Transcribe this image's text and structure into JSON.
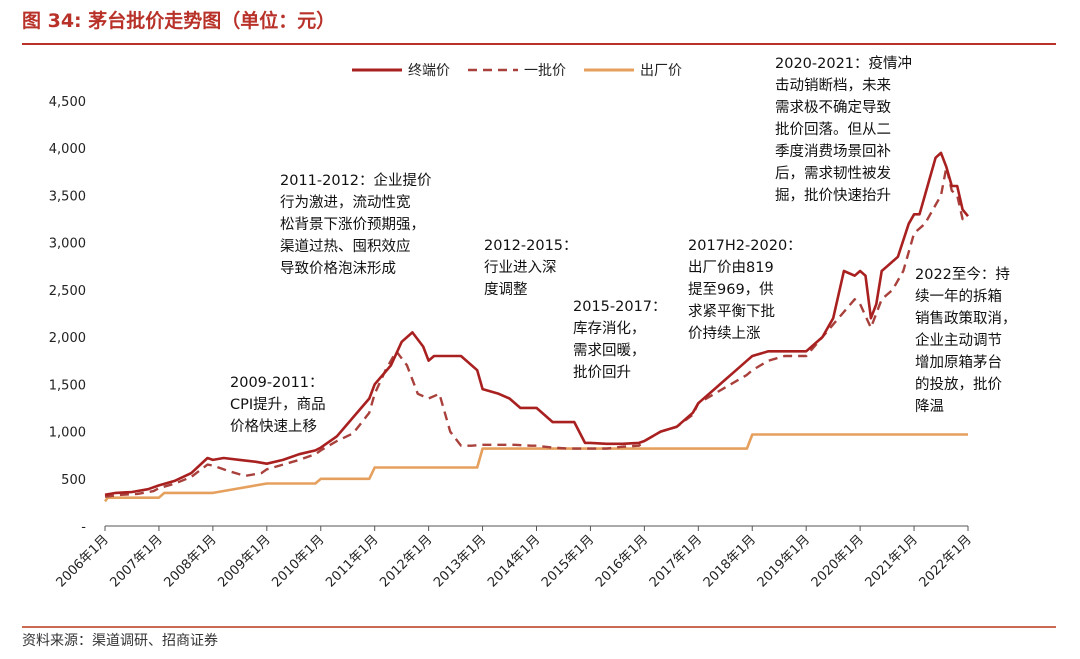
{
  "header": {
    "title": "图 34:  茅台批价走势图（单位：元）"
  },
  "footer": {
    "source": "资料来源：渠道调研、招商证券"
  },
  "chart_data": {
    "type": "line",
    "title": "图 34:  茅台批价走势图（单位：元）",
    "ylim": [
      0,
      4500
    ],
    "ytick_labels": [
      "-",
      "500",
      "1,000",
      "1,500",
      "2,000",
      "2,500",
      "3,000",
      "3,500",
      "4,000",
      "4,500"
    ],
    "xtick_labels": [
      "2006年1月",
      "2007年1月",
      "2008年1月",
      "2009年1月",
      "2010年1月",
      "2011年1月",
      "2012年1月",
      "2013年1月",
      "2014年1月",
      "2015年1月",
      "2016年1月",
      "2017年1月",
      "2018年1月",
      "2019年1月",
      "2020年1月",
      "2021年1月",
      "2022年1月"
    ],
    "x_range": [
      2006.0,
      2022.0
    ],
    "legend_position": "top",
    "colors": {
      "terminal": "#a8201f",
      "wholesale": "#a8403c",
      "factory": "#e5a05e"
    },
    "series": [
      {
        "name": "终端价",
        "style": "solid",
        "x": [
          2006.0,
          2006.2,
          2006.5,
          2006.8,
          2007.0,
          2007.3,
          2007.6,
          2007.9,
          2008.0,
          2008.2,
          2008.5,
          2008.8,
          2009.0,
          2009.3,
          2009.6,
          2009.9,
          2010.0,
          2010.3,
          2010.6,
          2010.9,
          2011.0,
          2011.3,
          2011.5,
          2011.7,
          2011.9,
          2012.0,
          2012.1,
          2012.3,
          2012.6,
          2012.9,
          2013.0,
          2013.3,
          2013.5,
          2013.7,
          2014.0,
          2014.3,
          2014.5,
          2014.7,
          2014.9,
          2015.0,
          2015.3,
          2015.6,
          2015.9,
          2016.0,
          2016.3,
          2016.6,
          2016.9,
          2017.0,
          2017.3,
          2017.5,
          2017.7,
          2017.9,
          2018.0,
          2018.3,
          2018.6,
          2018.9,
          2019.0,
          2019.3,
          2019.5,
          2019.7,
          2019.9,
          2020.0,
          2020.1,
          2020.2,
          2020.3,
          2020.4,
          2020.5,
          2020.7,
          2020.9,
          2021.0,
          2021.1,
          2021.2,
          2021.3,
          2021.4,
          2021.5,
          2021.6,
          2021.7,
          2021.8,
          2021.9,
          2022.0
        ],
        "values": [
          330,
          350,
          360,
          390,
          430,
          480,
          560,
          720,
          700,
          720,
          700,
          680,
          660,
          700,
          760,
          800,
          830,
          950,
          1150,
          1350,
          1500,
          1700,
          1950,
          2050,
          1900,
          1750,
          1800,
          1800,
          1800,
          1650,
          1450,
          1400,
          1350,
          1250,
          1250,
          1100,
          1100,
          1100,
          880,
          880,
          870,
          870,
          880,
          900,
          1000,
          1050,
          1200,
          1300,
          1450,
          1550,
          1650,
          1750,
          1800,
          1850,
          1850,
          1850,
          1850,
          2000,
          2200,
          2700,
          2650,
          2700,
          2650,
          2200,
          2350,
          2700,
          2750,
          2850,
          3200,
          3300,
          3300,
          3500,
          3700,
          3900,
          3950,
          3800,
          3600,
          3600,
          3350,
          3280
        ]
      },
      {
        "name": "一批价",
        "style": "dashed",
        "x": [
          2006.0,
          2006.3,
          2006.6,
          2006.9,
          2007.0,
          2007.3,
          2007.6,
          2007.9,
          2008.0,
          2008.3,
          2008.6,
          2008.9,
          2009.0,
          2009.3,
          2009.6,
          2009.9,
          2010.0,
          2010.3,
          2010.6,
          2010.9,
          2011.0,
          2011.2,
          2011.4,
          2011.6,
          2011.8,
          2012.0,
          2012.2,
          2012.4,
          2012.6,
          2012.8,
          2013.0,
          2013.3,
          2013.6,
          2013.9,
          2014.0,
          2014.3,
          2014.6,
          2014.9,
          2015.0,
          2015.3,
          2015.6,
          2015.9,
          2016.0,
          2016.3,
          2016.6,
          2016.9,
          2017.0,
          2017.3,
          2017.6,
          2017.9,
          2018.0,
          2018.3,
          2018.6,
          2018.9,
          2019.0,
          2019.3,
          2019.6,
          2019.9,
          2020.0,
          2020.2,
          2020.4,
          2020.6,
          2020.8,
          2021.0,
          2021.2,
          2021.4,
          2021.5,
          2021.6,
          2021.7,
          2021.8,
          2021.9,
          2022.0
        ],
        "values": [
          310,
          330,
          340,
          370,
          400,
          450,
          520,
          650,
          640,
          580,
          530,
          560,
          600,
          650,
          700,
          760,
          800,
          900,
          980,
          1200,
          1400,
          1650,
          1850,
          1700,
          1400,
          1350,
          1400,
          1000,
          850,
          850,
          860,
          860,
          860,
          850,
          850,
          830,
          820,
          820,
          820,
          820,
          840,
          850,
          900,
          1000,
          1050,
          1180,
          1300,
          1400,
          1500,
          1600,
          1650,
          1750,
          1800,
          1800,
          1800,
          2000,
          2200,
          2400,
          2350,
          2100,
          2400,
          2500,
          2700,
          3100,
          3200,
          3400,
          3500,
          3800,
          3550,
          3500,
          3250,
          3230
        ]
      },
      {
        "name": "出厂价",
        "style": "solid",
        "x": [
          2006.0,
          2006.05,
          2007.0,
          2007.1,
          2008.0,
          2009.0,
          2009.9,
          2010.0,
          2010.9,
          2011.0,
          2011.9,
          2012.0,
          2012.9,
          2013.0,
          2017.9,
          2018.0,
          2022.0
        ],
        "values": [
          260,
          300,
          300,
          350,
          350,
          450,
          450,
          500,
          500,
          619,
          619,
          619,
          619,
          819,
          819,
          969,
          969
        ]
      }
    ]
  },
  "legend": [
    {
      "label": "终端价"
    },
    {
      "label": "一批价"
    },
    {
      "label": "出厂价"
    }
  ],
  "annotations": [
    {
      "text": "2009-2011：\nCPI提升，商品\n价格快速上移"
    },
    {
      "text": "2011-2012：企业提价\n行为激进，流动性宽\n松背景下涨价预期强，\n渠道过热、囤积效应\n导致价格泡沫形成"
    },
    {
      "text": "2012-2015：\n行业进入深\n度调整"
    },
    {
      "text": "2015-2017：\n库存消化，\n需求回暖，\n批价回升"
    },
    {
      "text": "2017H2-2020：\n出厂价由819\n提至969，供\n求紧平衡下批\n价持续上涨"
    },
    {
      "text": "2020-2021：疫情冲\n击动销断档，未来\n需求极不确定导致\n批价回落。但从二\n季度消费场景回补\n后，需求韧性被发\n掘，批价快速抬升"
    },
    {
      "text": "2022至今：持\n续一年的拆箱\n销售政策取消，\n企业主动调节\n增加原箱茅台\n的投放，批价\n降温"
    }
  ]
}
